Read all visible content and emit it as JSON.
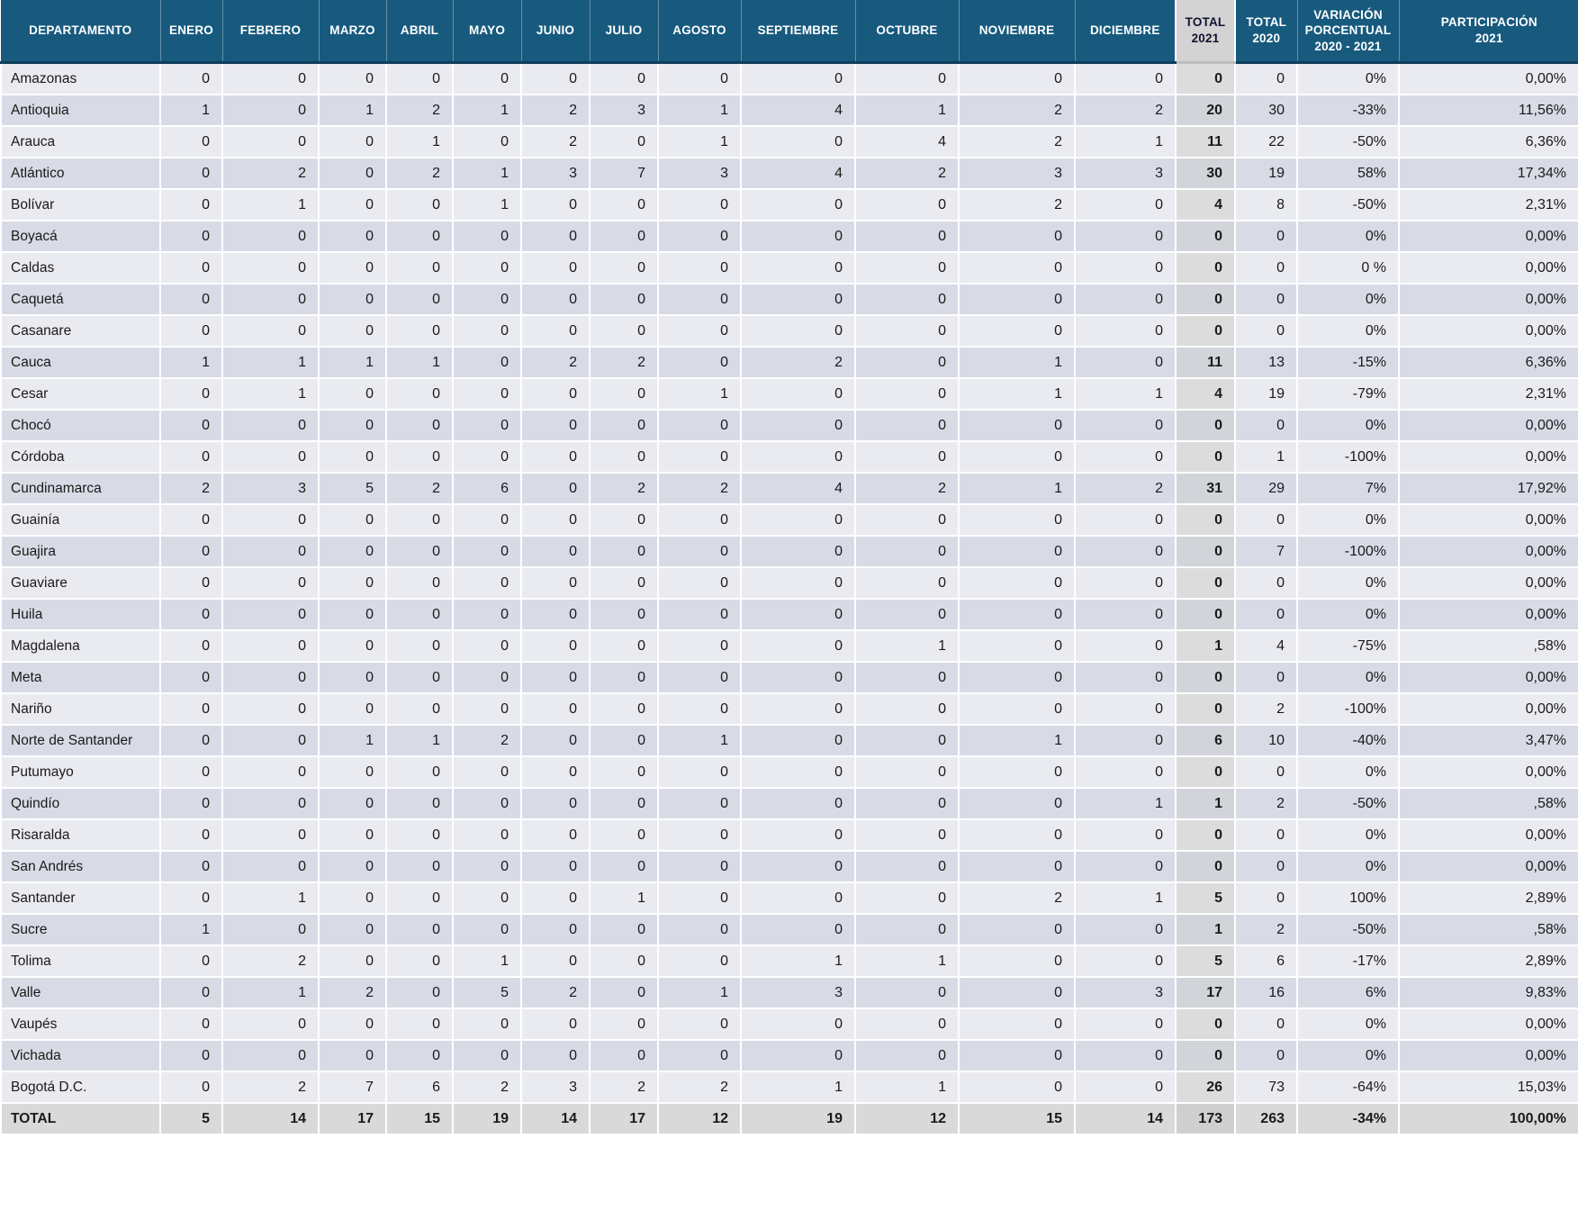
{
  "colors": {
    "header_bg": "#175A7E",
    "header_text": "#FFFFFF",
    "total_col_header_bg": "#D3D3D3",
    "row_light": "#EAEBF1",
    "row_dark": "#D8DBE5",
    "total_col_light": "#DCDCDC",
    "total_col_dark": "#D1D4D9",
    "total_row_bg": "#D9D9D9",
    "text": "#1A1A1A"
  },
  "chart_data": {
    "type": "table",
    "columns": [
      "DEPARTAMENTO",
      "ENERO",
      "FEBRERO",
      "MARZO",
      "ABRIL",
      "MAYO",
      "JUNIO",
      "JULIO",
      "AGOSTO",
      "SEPTIEMBRE",
      "OCTUBRE",
      "NOVIEMBRE",
      "DICIEMBRE",
      "TOTAL\n2021",
      "TOTAL\n2020",
      "VARIACIÓN\nPORCENTUAL\n2020 - 2021",
      "PARTICIPACIÓN\n2021"
    ],
    "rows": [
      {
        "department": "Amazonas",
        "months": [
          0,
          0,
          0,
          0,
          0,
          0,
          0,
          0,
          0,
          0,
          0,
          0
        ],
        "total_2021": 0,
        "total_2020": 0,
        "variation": "0%",
        "participation": "0,00%"
      },
      {
        "department": "Antioquia",
        "months": [
          1,
          0,
          1,
          2,
          1,
          2,
          3,
          1,
          4,
          1,
          2,
          2
        ],
        "total_2021": 20,
        "total_2020": 30,
        "variation": "-33%",
        "participation": "11,56%"
      },
      {
        "department": "Arauca",
        "months": [
          0,
          0,
          0,
          1,
          0,
          2,
          0,
          1,
          0,
          4,
          2,
          1
        ],
        "total_2021": 11,
        "total_2020": 22,
        "variation": "-50%",
        "participation": "6,36%"
      },
      {
        "department": "Atlántico",
        "months": [
          0,
          2,
          0,
          2,
          1,
          3,
          7,
          3,
          4,
          2,
          3,
          3
        ],
        "total_2021": 30,
        "total_2020": 19,
        "variation": "58%",
        "participation": "17,34%"
      },
      {
        "department": "Bolívar",
        "months": [
          0,
          1,
          0,
          0,
          1,
          0,
          0,
          0,
          0,
          0,
          2,
          0
        ],
        "total_2021": 4,
        "total_2020": 8,
        "variation": "-50%",
        "participation": "2,31%"
      },
      {
        "department": "Boyacá",
        "months": [
          0,
          0,
          0,
          0,
          0,
          0,
          0,
          0,
          0,
          0,
          0,
          0
        ],
        "total_2021": 0,
        "total_2020": 0,
        "variation": "0%",
        "participation": "0,00%"
      },
      {
        "department": "Caldas",
        "months": [
          0,
          0,
          0,
          0,
          0,
          0,
          0,
          0,
          0,
          0,
          0,
          0
        ],
        "total_2021": 0,
        "total_2020": 0,
        "variation": "0 %",
        "participation": "0,00%"
      },
      {
        "department": "Caquetá",
        "months": [
          0,
          0,
          0,
          0,
          0,
          0,
          0,
          0,
          0,
          0,
          0,
          0
        ],
        "total_2021": 0,
        "total_2020": 0,
        "variation": "0%",
        "participation": "0,00%"
      },
      {
        "department": "Casanare",
        "months": [
          0,
          0,
          0,
          0,
          0,
          0,
          0,
          0,
          0,
          0,
          0,
          0
        ],
        "total_2021": 0,
        "total_2020": 0,
        "variation": "0%",
        "participation": "0,00%"
      },
      {
        "department": "Cauca",
        "months": [
          1,
          1,
          1,
          1,
          0,
          2,
          2,
          0,
          2,
          0,
          1,
          0
        ],
        "total_2021": 11,
        "total_2020": 13,
        "variation": "-15%",
        "participation": "6,36%"
      },
      {
        "department": "Cesar",
        "months": [
          0,
          1,
          0,
          0,
          0,
          0,
          0,
          1,
          0,
          0,
          1,
          1
        ],
        "total_2021": 4,
        "total_2020": 19,
        "variation": "-79%",
        "participation": "2,31%"
      },
      {
        "department": "Chocó",
        "months": [
          0,
          0,
          0,
          0,
          0,
          0,
          0,
          0,
          0,
          0,
          0,
          0
        ],
        "total_2021": 0,
        "total_2020": 0,
        "variation": "0%",
        "participation": "0,00%"
      },
      {
        "department": "Córdoba",
        "months": [
          0,
          0,
          0,
          0,
          0,
          0,
          0,
          0,
          0,
          0,
          0,
          0
        ],
        "total_2021": 0,
        "total_2020": 1,
        "variation": "-100%",
        "participation": "0,00%"
      },
      {
        "department": "Cundinamarca",
        "months": [
          2,
          3,
          5,
          2,
          6,
          0,
          2,
          2,
          4,
          2,
          1,
          2
        ],
        "total_2021": 31,
        "total_2020": 29,
        "variation": "7%",
        "participation": "17,92%"
      },
      {
        "department": "Guainía",
        "months": [
          0,
          0,
          0,
          0,
          0,
          0,
          0,
          0,
          0,
          0,
          0,
          0
        ],
        "total_2021": 0,
        "total_2020": 0,
        "variation": "0%",
        "participation": "0,00%"
      },
      {
        "department": "Guajira",
        "months": [
          0,
          0,
          0,
          0,
          0,
          0,
          0,
          0,
          0,
          0,
          0,
          0
        ],
        "total_2021": 0,
        "total_2020": 7,
        "variation": "-100%",
        "participation": "0,00%"
      },
      {
        "department": "Guaviare",
        "months": [
          0,
          0,
          0,
          0,
          0,
          0,
          0,
          0,
          0,
          0,
          0,
          0
        ],
        "total_2021": 0,
        "total_2020": 0,
        "variation": "0%",
        "participation": "0,00%"
      },
      {
        "department": "Huila",
        "months": [
          0,
          0,
          0,
          0,
          0,
          0,
          0,
          0,
          0,
          0,
          0,
          0
        ],
        "total_2021": 0,
        "total_2020": 0,
        "variation": "0%",
        "participation": "0,00%"
      },
      {
        "department": "Magdalena",
        "months": [
          0,
          0,
          0,
          0,
          0,
          0,
          0,
          0,
          0,
          1,
          0,
          0
        ],
        "total_2021": 1,
        "total_2020": 4,
        "variation": "-75%",
        "participation": ",58%"
      },
      {
        "department": "Meta",
        "months": [
          0,
          0,
          0,
          0,
          0,
          0,
          0,
          0,
          0,
          0,
          0,
          0
        ],
        "total_2021": 0,
        "total_2020": 0,
        "variation": "0%",
        "participation": "0,00%"
      },
      {
        "department": "Nariño",
        "months": [
          0,
          0,
          0,
          0,
          0,
          0,
          0,
          0,
          0,
          0,
          0,
          0
        ],
        "total_2021": 0,
        "total_2020": 2,
        "variation": "-100%",
        "participation": "0,00%"
      },
      {
        "department": "Norte de Santander",
        "months": [
          0,
          0,
          1,
          1,
          2,
          0,
          0,
          1,
          0,
          0,
          1,
          0
        ],
        "total_2021": 6,
        "total_2020": 10,
        "variation": "-40%",
        "participation": "3,47%"
      },
      {
        "department": "Putumayo",
        "months": [
          0,
          0,
          0,
          0,
          0,
          0,
          0,
          0,
          0,
          0,
          0,
          0
        ],
        "total_2021": 0,
        "total_2020": 0,
        "variation": "0%",
        "participation": "0,00%"
      },
      {
        "department": "Quindío",
        "months": [
          0,
          0,
          0,
          0,
          0,
          0,
          0,
          0,
          0,
          0,
          0,
          1
        ],
        "total_2021": 1,
        "total_2020": 2,
        "variation": "-50%",
        "participation": ",58%"
      },
      {
        "department": "Risaralda",
        "months": [
          0,
          0,
          0,
          0,
          0,
          0,
          0,
          0,
          0,
          0,
          0,
          0
        ],
        "total_2021": 0,
        "total_2020": 0,
        "variation": "0%",
        "participation": "0,00%"
      },
      {
        "department": "San Andrés",
        "months": [
          0,
          0,
          0,
          0,
          0,
          0,
          0,
          0,
          0,
          0,
          0,
          0
        ],
        "total_2021": 0,
        "total_2020": 0,
        "variation": "0%",
        "participation": "0,00%"
      },
      {
        "department": "Santander",
        "months": [
          0,
          1,
          0,
          0,
          0,
          0,
          1,
          0,
          0,
          0,
          2,
          1
        ],
        "total_2021": 5,
        "total_2020": 0,
        "variation": "100%",
        "participation": "2,89%"
      },
      {
        "department": "Sucre",
        "months": [
          1,
          0,
          0,
          0,
          0,
          0,
          0,
          0,
          0,
          0,
          0,
          0
        ],
        "total_2021": 1,
        "total_2020": 2,
        "variation": "-50%",
        "participation": ",58%"
      },
      {
        "department": "Tolima",
        "months": [
          0,
          2,
          0,
          0,
          1,
          0,
          0,
          0,
          1,
          1,
          0,
          0
        ],
        "total_2021": 5,
        "total_2020": 6,
        "variation": "-17%",
        "participation": "2,89%"
      },
      {
        "department": "Valle",
        "months": [
          0,
          1,
          2,
          0,
          5,
          2,
          0,
          1,
          3,
          0,
          0,
          3
        ],
        "total_2021": 17,
        "total_2020": 16,
        "variation": "6%",
        "participation": "9,83%"
      },
      {
        "department": "Vaupés",
        "months": [
          0,
          0,
          0,
          0,
          0,
          0,
          0,
          0,
          0,
          0,
          0,
          0
        ],
        "total_2021": 0,
        "total_2020": 0,
        "variation": "0%",
        "participation": "0,00%"
      },
      {
        "department": "Vichada",
        "months": [
          0,
          0,
          0,
          0,
          0,
          0,
          0,
          0,
          0,
          0,
          0,
          0
        ],
        "total_2021": 0,
        "total_2020": 0,
        "variation": "0%",
        "participation": "0,00%"
      },
      {
        "department": "Bogotá D.C.",
        "months": [
          0,
          2,
          7,
          6,
          2,
          3,
          2,
          2,
          1,
          1,
          0,
          0
        ],
        "total_2021": 26,
        "total_2020": 73,
        "variation": "-64%",
        "participation": "15,03%"
      }
    ],
    "total_row": {
      "department": "TOTAL",
      "months": [
        5,
        14,
        17,
        15,
        19,
        14,
        17,
        12,
        19,
        12,
        15,
        14
      ],
      "total_2021": 173,
      "total_2020": 263,
      "variation": "-34%",
      "participation": "100,00%"
    }
  }
}
